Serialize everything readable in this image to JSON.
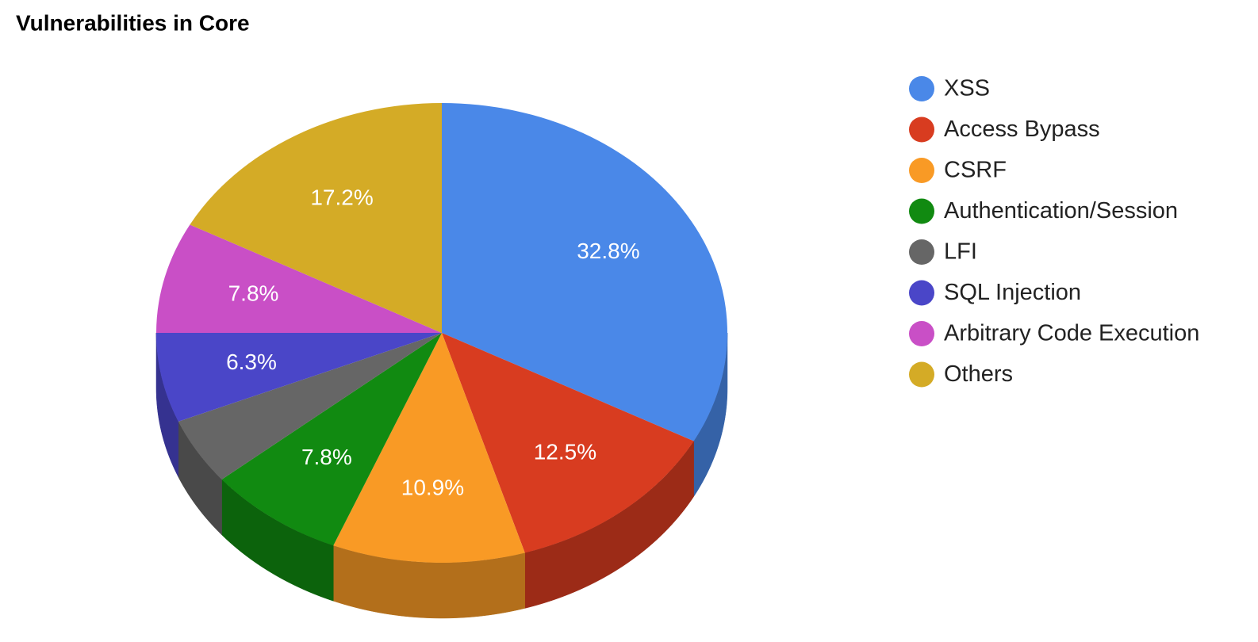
{
  "chart_data": {
    "type": "pie3d",
    "title": "Vulnerabilities in Core",
    "categories": [
      "XSS",
      "Access Bypass",
      "CSRF",
      "Authentication/Session",
      "LFI",
      "SQL Injection",
      "Arbitrary Code Execution",
      "Others"
    ],
    "values": [
      32.8,
      12.5,
      10.9,
      7.8,
      4.7,
      6.3,
      7.8,
      17.2
    ],
    "value_labels": [
      "32.8%",
      "12.5%",
      "10.9%",
      "7.8%",
      null,
      "6.3%",
      "7.8%",
      "17.2%"
    ],
    "colors": [
      "#4a88e8",
      "#d83c20",
      "#f99a25",
      "#118a11",
      "#666666",
      "#4a46c8",
      "#c94fc6",
      "#d4ab26"
    ],
    "legend": "right"
  }
}
